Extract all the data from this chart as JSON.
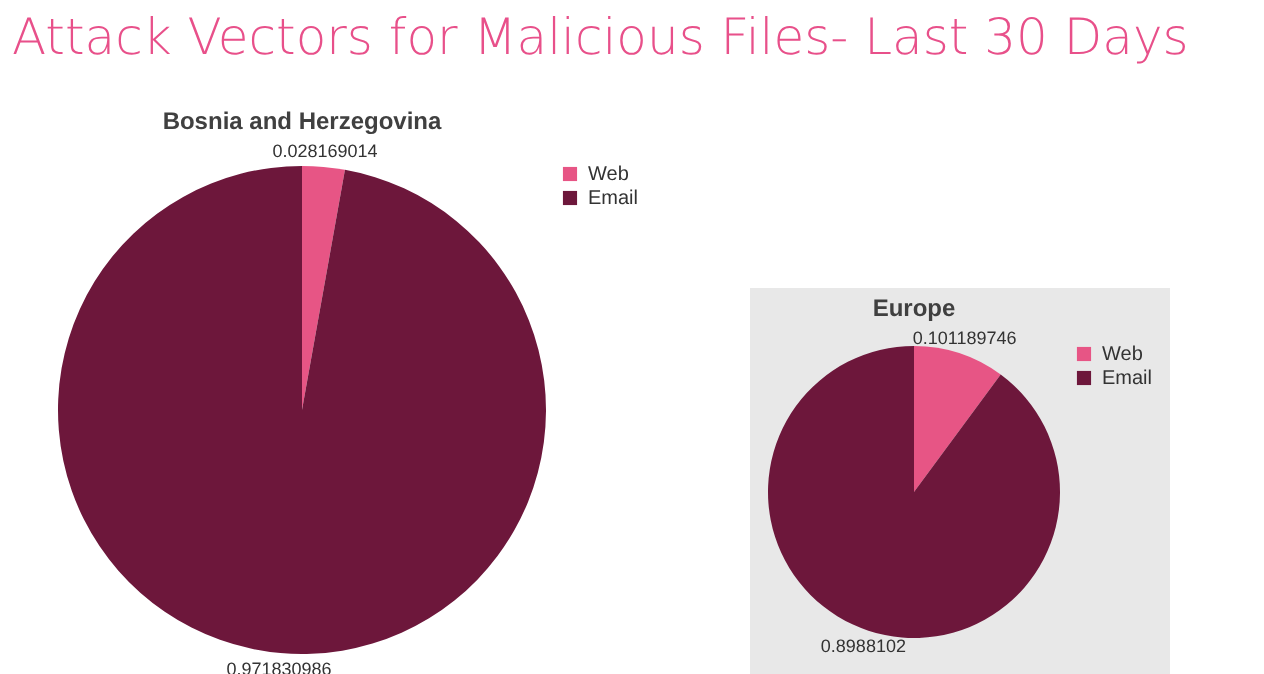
{
  "chart_data": [
    {
      "type": "pie",
      "title": "Bosnia and Herzegovina",
      "annotations": [
        "Attack Vectors for Malicious Files- Last 30 Days"
      ],
      "categories": [
        "Web",
        "Email"
      ],
      "values": [
        0.028169014,
        0.971830986
      ],
      "colors": [
        "#e75585",
        "#6d173b"
      ],
      "data_labels": true,
      "legend": "right"
    },
    {
      "type": "pie",
      "title": "Europe",
      "categories": [
        "Web",
        "Email"
      ],
      "values": [
        0.101189746,
        0.8988102
      ],
      "colors": [
        "#e75585",
        "#6d173b"
      ],
      "data_labels": true,
      "legend": "right"
    }
  ]
}
